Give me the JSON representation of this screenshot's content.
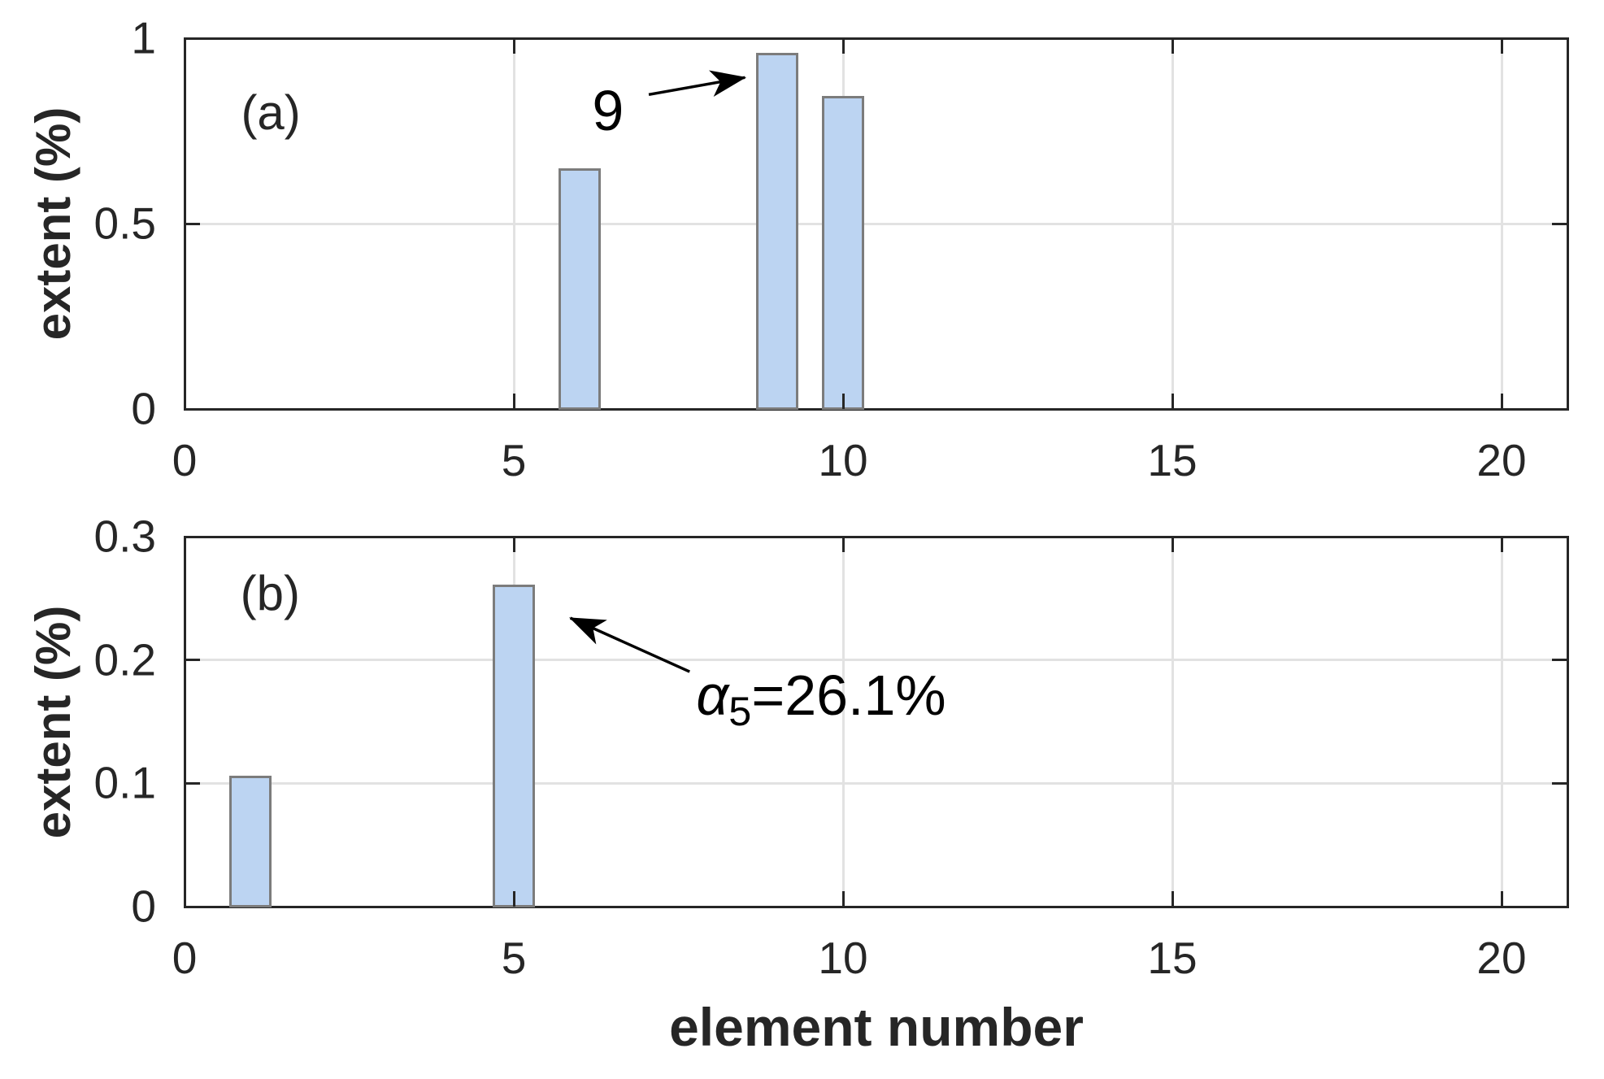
{
  "figure": {
    "xlabel": "element number",
    "colors": {
      "background": "#ffffff",
      "axis": "#262626",
      "grid": "#e2e2e2",
      "bar_fill": "#bcd4f2",
      "bar_edge": "#7c7c7c",
      "annotation": "#000000"
    }
  },
  "chart_data": [
    {
      "type": "bar",
      "panel": "a",
      "panel_label": "(a)",
      "panel_label_pos": [
        1.31,
        0.798
      ],
      "ylabel": "extent (%)",
      "x": [
        6,
        9,
        10
      ],
      "values": [
        0.65,
        0.96,
        0.845
      ],
      "bar_width": 0.65,
      "xlim": [
        0,
        21
      ],
      "ylim": [
        0,
        1
      ],
      "xticks": [
        0,
        5,
        10,
        15,
        20
      ],
      "xtick_labels": [
        "0",
        "5",
        "10",
        "15",
        "20"
      ],
      "yticks": [
        0,
        0.5,
        1
      ],
      "ytick_labels": [
        "0",
        "0.5",
        "1"
      ],
      "grid": true,
      "legend": null,
      "annotations": [
        {
          "text": "9",
          "anchor": "center",
          "pos": [
            6.43,
            0.805
          ],
          "arrow_from": [
            7.05,
            0.848
          ],
          "arrow_to": [
            8.51,
            0.894
          ]
        }
      ]
    },
    {
      "type": "bar",
      "panel": "b",
      "panel_label": "(b)",
      "panel_label_pos": [
        1.3,
        0.254
      ],
      "ylabel": "extent (%)",
      "x": [
        1,
        5
      ],
      "values": [
        0.106,
        0.261
      ],
      "bar_width": 0.65,
      "xlim": [
        0,
        21
      ],
      "ylim": [
        0,
        0.3
      ],
      "xticks": [
        0,
        5,
        10,
        15,
        20
      ],
      "xtick_labels": [
        "0",
        "5",
        "10",
        "15",
        "20"
      ],
      "yticks": [
        0,
        0.1,
        0.2,
        0.3
      ],
      "ytick_labels": [
        "0",
        "0.1",
        "0.2",
        "0.3"
      ],
      "grid": true,
      "legend": null,
      "annotations": [
        {
          "parts": {
            "italic": "α",
            "sub": "5",
            "rest": "=26.1%"
          },
          "anchor": "left",
          "pos": [
            7.77,
            0.168
          ],
          "arrow_from": [
            7.67,
            0.1905
          ],
          "arrow_to": [
            5.86,
            0.234
          ]
        }
      ]
    }
  ]
}
